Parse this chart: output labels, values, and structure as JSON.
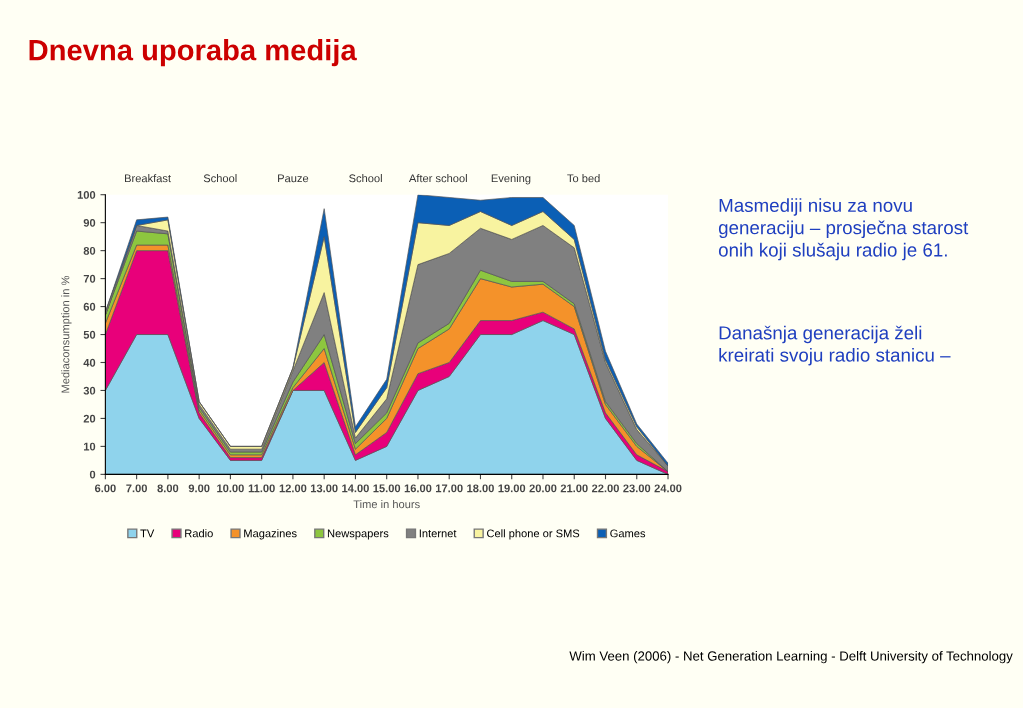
{
  "chart_data": {
    "type": "area",
    "stacked": true,
    "title": "Dnevna uporaba medija",
    "xlabel": "Time in hours",
    "ylabel": "Mediaconsumption in %",
    "x": [
      6,
      7,
      8,
      9,
      10,
      11,
      12,
      13,
      14,
      15,
      16,
      17,
      18,
      19,
      20,
      21,
      22,
      23,
      24
    ],
    "xlim": [
      6,
      24
    ],
    "xticks": [
      {
        "value": 6,
        "label": "6.00"
      },
      {
        "value": 7,
        "label": "7.00"
      },
      {
        "value": 8,
        "label": "8.00"
      },
      {
        "value": 9,
        "label": "9.00"
      },
      {
        "value": 10,
        "label": "10.00"
      },
      {
        "value": 11,
        "label": "11.00"
      },
      {
        "value": 12,
        "label": "12.00"
      },
      {
        "value": 13,
        "label": "13.00"
      },
      {
        "value": 14,
        "label": "14.00"
      },
      {
        "value": 15,
        "label": "15.00"
      },
      {
        "value": 16,
        "label": "16.00"
      },
      {
        "value": 17,
        "label": "17.00"
      },
      {
        "value": 18,
        "label": "18.00"
      },
      {
        "value": 19,
        "label": "19.00"
      },
      {
        "value": 20,
        "label": "20.00"
      },
      {
        "value": 21,
        "label": "21.00"
      },
      {
        "value": 22,
        "label": "22.00"
      },
      {
        "value": 23,
        "label": "23.00"
      },
      {
        "value": 24,
        "label": "24.00"
      }
    ],
    "ylim": [
      0,
      100
    ],
    "yticks": [
      0,
      10,
      20,
      30,
      40,
      50,
      60,
      70,
      80,
      90,
      100
    ],
    "legend": "bottom",
    "grid": false,
    "series": [
      {
        "name": "TV",
        "color": "#8fd3ec",
        "values": [
          30,
          50,
          50,
          20,
          5,
          5,
          30,
          30,
          5,
          10,
          30,
          35,
          50,
          50,
          55,
          50,
          20,
          5,
          0
        ]
      },
      {
        "name": "Radio",
        "color": "#e8007a",
        "values": [
          20,
          30,
          30,
          2,
          1,
          1,
          0,
          10,
          2,
          5,
          6,
          5,
          5,
          5,
          3,
          2,
          2,
          2,
          1
        ]
      },
      {
        "name": "Magazines",
        "color": "#f4922a",
        "values": [
          4,
          2,
          2,
          1,
          1,
          1,
          1,
          5,
          2,
          5,
          9,
          12,
          15,
          12,
          10,
          8,
          3,
          3,
          0
        ]
      },
      {
        "name": "Newspapers",
        "color": "#8dc63f",
        "values": [
          3,
          5,
          4,
          1,
          1,
          1,
          2,
          5,
          2,
          2,
          2,
          2,
          3,
          2,
          1,
          1,
          1,
          1,
          0
        ]
      },
      {
        "name": "Internet",
        "color": "#808080",
        "values": [
          0,
          2,
          1,
          1,
          1,
          1,
          4,
          15,
          2,
          5,
          28,
          25,
          15,
          15,
          20,
          20,
          14,
          5,
          2
        ]
      },
      {
        "name": "Cell phone or SMS",
        "color": "#f8f3a0",
        "values": [
          1,
          0,
          4,
          1,
          1,
          1,
          1,
          20,
          2,
          4,
          15,
          10,
          6,
          5,
          5,
          3,
          1,
          1,
          0
        ]
      },
      {
        "name": "Games",
        "color": "#0b5fb5",
        "values": [
          0,
          2,
          1,
          0,
          0,
          0,
          0,
          10,
          2,
          3,
          10,
          10,
          4,
          10,
          5,
          5,
          3,
          1,
          1
        ]
      }
    ],
    "annotations": [
      "Breakfast",
      "School",
      "Pauze",
      "School",
      "After school",
      "Evening",
      "To bed",
      "Masmediji nisu za novu generaciju – prosječna starost onih koji slušaju radio je 61.",
      "Današnja generacija želi kreirati svoju radio stanicu –",
      "Wim Veen (2006) - Net Generation Learning - Delft University of Technology"
    ]
  }
}
